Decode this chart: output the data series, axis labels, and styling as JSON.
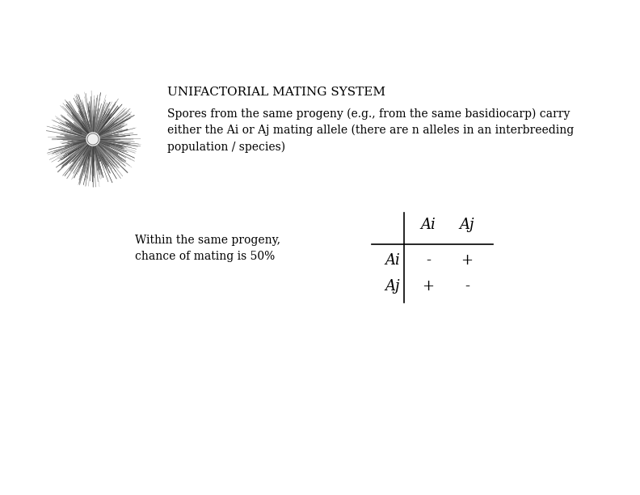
{
  "background_color": "#ffffff",
  "title": "UNIFACTORIAL MATING SYSTEM",
  "title_fontsize": 11,
  "body_text": "Spores from the same progeny (e.g., from the same basidiocarp) carry\neither the Ai or Aj mating allele (there are n alleles in an interbreeding\npopulation / species)",
  "body_fontsize": 10,
  "side_label": "Within the same progeny,\nchance of mating is 50%",
  "side_label_fontsize": 10,
  "col_header_fontsize": 13,
  "row_label_fontsize": 13,
  "cell_fontsize": 13,
  "line_color": "#000000",
  "text_color": "#000000",
  "font_family": "DejaVu Serif"
}
